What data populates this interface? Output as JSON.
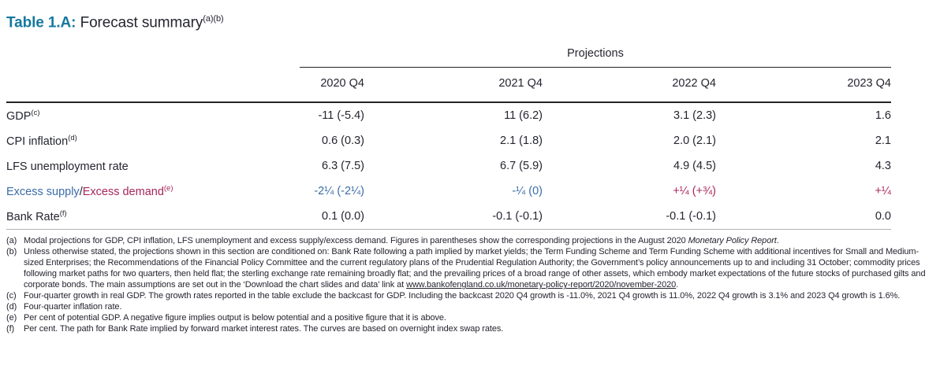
{
  "colors": {
    "teal": "#15789f",
    "text_dark": "#24252f",
    "supply_blue": "#3a6da7",
    "demand_crimson": "#a8265a"
  },
  "title": {
    "prefix": "Table 1.A:",
    "name": " Forecast summary",
    "sup": "(a)(b)"
  },
  "table": {
    "group_header": "Projections",
    "columns": [
      "2020 Q4",
      "2021 Q4",
      "2022 Q4",
      "2023 Q4"
    ],
    "rows": [
      {
        "label": "GDP",
        "sup": "(c)",
        "cells": [
          "-11 (-5.4)",
          "11 (6.2)",
          "3.1 (2.3)",
          "1.6"
        ]
      },
      {
        "label": "CPI inflation",
        "sup": "(d)",
        "cells": [
          "0.6 (0.3)",
          "2.1 (1.8)",
          "2.0 (2.1)",
          "2.1"
        ]
      },
      {
        "label": "LFS unemployment rate",
        "sup": "",
        "cells": [
          "6.3 (7.5)",
          "6.7 (5.9)",
          "4.9 (4.5)",
          "4.3"
        ]
      },
      {
        "label_supply": "Excess supply",
        "label_slash": "/",
        "label_demand": "Excess demand",
        "sup": "(e)",
        "cells": [
          "-2¼ (-2¼)",
          "-¼ (0)",
          "+¼ (+¾)",
          "+¼"
        ]
      },
      {
        "label": "Bank Rate",
        "sup": "(f)",
        "cells": [
          "0.1 (0.0)",
          "-0.1 (-0.1)",
          "-0.1 (-0.1)",
          "0.0"
        ]
      }
    ]
  },
  "footnotes": {
    "a": {
      "label": "(a)",
      "text": "Modal projections for GDP, CPI inflation, LFS unemployment and excess supply/excess demand. Figures in parentheses show the corresponding projections in the August 2020 ",
      "italic": "Monetary Policy Report",
      "tail": "."
    },
    "b": {
      "label": "(b)",
      "text": "Unless otherwise stated, the projections shown in this section are conditioned on: Bank Rate following a path implied by market yields; the Term Funding Scheme and Term Funding Scheme with additional incentives for Small and Medium-sized Enterprises; the Recommendations of the Financial Policy Committee and the current regulatory plans of the Prudential Regulation Authority; the Government’s policy announcements up to and including 31 October; commodity prices following market paths for two quarters, then held flat; the sterling exchange rate remaining broadly flat; and the prevailing prices of a broad range of other assets, which embody market expectations of the future stocks of purchased gilts and corporate bonds. The main assumptions are set out in the ‘Download the chart slides and data’ link at ",
      "link": "www.bankofengland.co.uk/monetary-policy-report/2020/november-2020",
      "tail": "."
    },
    "c": {
      "label": "(c)",
      "text": "Four-quarter growth in real GDP. The growth rates reported in the table exclude the backcast for GDP. Including the backcast 2020 Q4 growth is -11.0%, 2021 Q4 growth is 11.0%, 2022 Q4 growth is 3.1% and 2023 Q4 growth is 1.6%."
    },
    "d": {
      "label": "(d)",
      "text": "Four-quarter inflation rate."
    },
    "e": {
      "label": "(e)",
      "text": "Per cent of potential GDP. A negative figure implies output is below potential and a positive figure that it is above."
    },
    "f": {
      "label": "(f)",
      "text": "Per cent. The path for Bank Rate implied by forward market interest rates. The curves are based on overnight index swap rates."
    }
  }
}
